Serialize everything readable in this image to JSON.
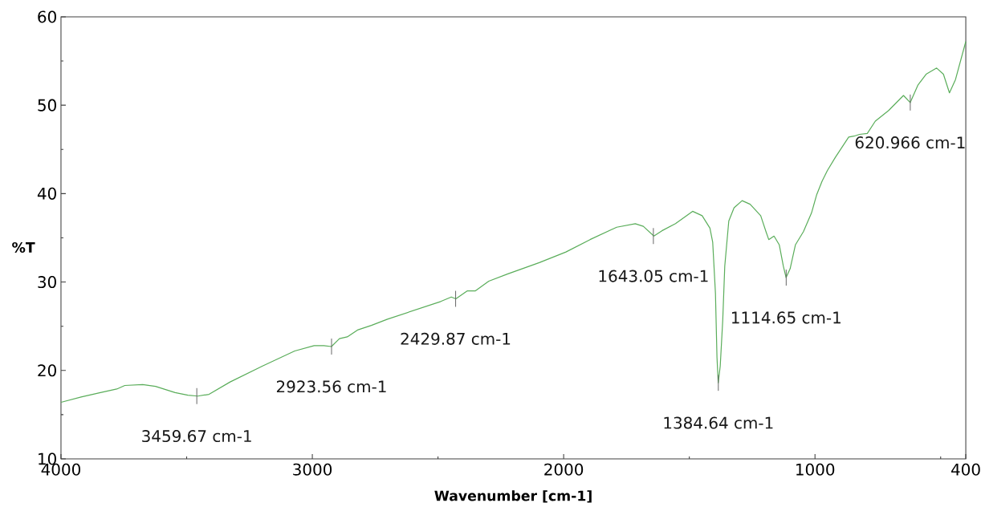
{
  "chart_data": {
    "type": "line",
    "xlabel": "Wavenumber [cm-1]",
    "ylabel": "%T",
    "marker": "none",
    "xlim": [
      4000,
      400
    ],
    "ylim": [
      10,
      60
    ],
    "xticks": [
      4000,
      {
        "value": 3500,
        "label": null
      },
      3000,
      {
        "value": 2500,
        "label": null
      },
      2000,
      {
        "value": 1500,
        "label": null
      },
      1000,
      {
        "value": 500,
        "label": null
      },
      400
    ],
    "yticks": [
      10,
      {
        "value": 15,
        "label": null
      },
      20,
      {
        "value": 25,
        "label": null
      },
      30,
      {
        "value": 35,
        "label": null
      },
      40,
      {
        "value": 45,
        "label": null
      },
      50,
      {
        "value": 55,
        "label": null
      },
      60
    ],
    "x": [
      4000,
      3920,
      3843,
      3778,
      3746,
      3675,
      3624,
      3546,
      3495,
      3456,
      3411,
      3327,
      3198,
      3070,
      2993,
      2954,
      2924,
      2892,
      2861,
      2818,
      2765,
      2701,
      2595,
      2489,
      2447,
      2429,
      2383,
      2351,
      2298,
      2224,
      2097,
      1991,
      1895,
      1789,
      1715,
      1683,
      1641,
      1609,
      1555,
      1487,
      1449,
      1418,
      1407,
      1396,
      1390,
      1385,
      1377,
      1367,
      1359,
      1343,
      1322,
      1290,
      1258,
      1216,
      1195,
      1184,
      1163,
      1142,
      1126,
      1115,
      1099,
      1078,
      1046,
      1014,
      993,
      972,
      951,
      919,
      866,
      845,
      823,
      792,
      760,
      707,
      648,
      621,
      590,
      558,
      516,
      489,
      465,
      441,
      400
    ],
    "series": [
      {
        "color": "#5aad5a",
        "values": [
          16.4,
          17.0,
          17.5,
          17.9,
          18.3,
          18.4,
          18.2,
          17.5,
          17.2,
          17.1,
          17.3,
          18.7,
          20.5,
          22.2,
          22.8,
          22.8,
          22.7,
          23.6,
          23.8,
          24.6,
          25.1,
          25.8,
          26.8,
          27.8,
          28.3,
          28.1,
          29.0,
          29.0,
          30.1,
          30.9,
          32.2,
          33.4,
          34.8,
          36.2,
          36.6,
          36.3,
          35.2,
          35.8,
          36.6,
          38.0,
          37.5,
          36.1,
          34.5,
          28.7,
          21.5,
          18.6,
          20.5,
          25.7,
          31.8,
          36.9,
          38.4,
          39.2,
          38.8,
          37.5,
          35.7,
          34.8,
          35.2,
          34.2,
          31.8,
          30.5,
          31.5,
          34.2,
          35.7,
          37.8,
          39.9,
          41.4,
          42.6,
          44.1,
          46.4,
          46.5,
          46.7,
          46.8,
          48.2,
          49.4,
          51.1,
          50.3,
          52.3,
          53.5,
          54.2,
          53.5,
          51.4,
          52.9,
          57.2
        ]
      }
    ],
    "annotations": [
      {
        "text": "3459.67 cm-1",
        "x": 3459.67,
        "y": 17.1
      },
      {
        "text": "2923.56 cm-1",
        "x": 2923.56,
        "y": 22.7
      },
      {
        "text": "2429.87 cm-1",
        "x": 2429.87,
        "y": 28.1
      },
      {
        "text": "1643.05 cm-1",
        "x": 1643.05,
        "y": 35.2
      },
      {
        "text": "1384.64 cm-1",
        "x": 1384.64,
        "y": 18.6
      },
      {
        "text": "1114.65 cm-1",
        "x": 1114.65,
        "y": 30.5
      },
      {
        "text": "620.966 cm-1",
        "x": 620.966,
        "y": 50.3
      }
    ]
  }
}
